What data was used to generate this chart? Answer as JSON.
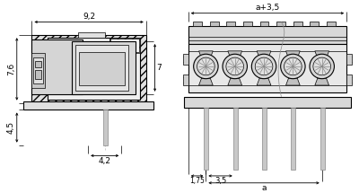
{
  "bg_color": "#ffffff",
  "line_color": "#000000",
  "dim_color": "#000000",
  "text_color": "#000000",
  "hatch_color": "#888888",
  "gray_light": "#e8e8e8",
  "gray_mid": "#d0d0d0",
  "gray_dark": "#b0b0b0",
  "gray_fill": "#c8c8c8",
  "dim_9_2": "9,2",
  "dim_7_6": "7,6",
  "dim_7": "7",
  "dim_4_5": "4,5",
  "dim_4_2": "4,2",
  "dim_a35": "a+3,5",
  "dim_1_75": "1,75",
  "dim_3_5": "3,5",
  "dim_a": "a",
  "font_size": 6.5,
  "fig_width": 4.0,
  "fig_height": 2.15,
  "dpi": 100
}
